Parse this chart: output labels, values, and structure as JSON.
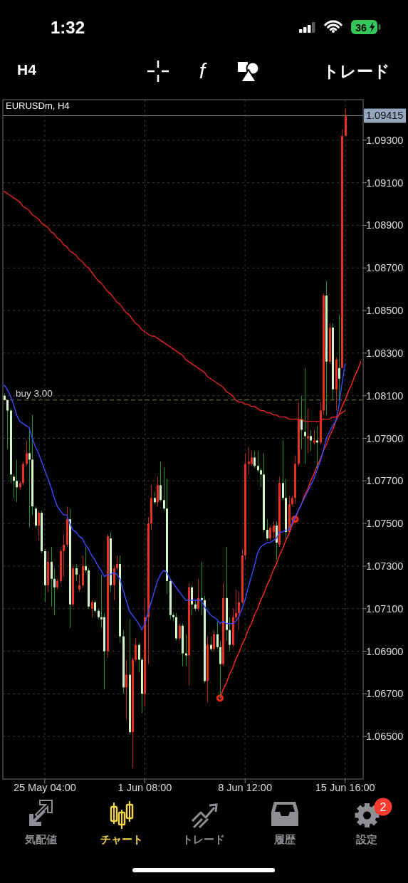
{
  "chart_data": {
    "type": "candlestick",
    "title": "EURUSDm, H4",
    "categories": [
      null,
      null,
      null,
      null,
      null,
      null,
      null,
      null,
      null,
      null,
      null,
      null,
      null,
      "25 May 04:00",
      null,
      null,
      null,
      null,
      null,
      null,
      null,
      null,
      null,
      null,
      null,
      null,
      null,
      null,
      null,
      null,
      null,
      null,
      null,
      null,
      null,
      null,
      null,
      null,
      null,
      null,
      null,
      null,
      null,
      null,
      null,
      "1 Jun 08:00",
      null,
      null,
      null,
      null,
      null,
      null,
      null,
      null,
      null,
      null,
      null,
      null,
      null,
      null,
      null,
      null,
      null,
      null,
      null,
      null,
      null,
      null,
      null,
      null,
      null,
      null,
      null,
      null,
      null,
      null,
      null,
      "8 Jun 12:00",
      null,
      null,
      null,
      null,
      null,
      null,
      null,
      null,
      null,
      null,
      null,
      null,
      null,
      null,
      null,
      null,
      null,
      null,
      null,
      null,
      null,
      null,
      null,
      null,
      null,
      null,
      null,
      null,
      null,
      null,
      null,
      "15 Jun 16:00",
      null,
      null,
      null,
      null,
      null
    ],
    "ohlc": [
      [
        1.081,
        1.0811,
        1.0808,
        1.0808
      ],
      [
        1.0808,
        1.0808,
        1.0785,
        1.0803
      ],
      [
        1.0803,
        1.0804,
        1.0769,
        1.0773
      ],
      [
        1.0772,
        1.0773,
        1.0762,
        1.077
      ],
      [
        1.077,
        1.078,
        1.076,
        1.0767
      ],
      [
        1.0767,
        1.077,
        1.0766,
        1.0769
      ],
      [
        1.0769,
        1.0779,
        1.0768,
        1.0778
      ],
      [
        1.0778,
        1.0789,
        1.0777,
        1.0783
      ],
      [
        1.0783,
        1.0794,
        1.0748,
        1.078
      ],
      [
        1.078,
        1.0801,
        1.0754,
        1.0758
      ],
      [
        1.0757,
        1.0758,
        1.0748,
        1.0749
      ],
      [
        1.0749,
        1.0756,
        1.0742,
        1.0755
      ],
      [
        1.0755,
        1.0756,
        1.0736,
        1.0737
      ],
      [
        1.0737,
        1.0738,
        1.0713,
        1.0721
      ],
      [
        1.0721,
        1.0737,
        1.0718,
        1.0732
      ],
      [
        1.0732,
        1.0739,
        1.0711,
        1.0724
      ],
      [
        1.0724,
        1.0729,
        1.0707,
        1.072
      ],
      [
        1.072,
        1.0724,
        1.0719,
        1.0723
      ],
      [
        1.0723,
        1.0738,
        1.0722,
        1.0737
      ],
      [
        1.0737,
        1.0745,
        1.0725,
        1.074
      ],
      [
        1.074,
        1.0758,
        1.0739,
        1.0752
      ],
      [
        1.0752,
        1.0757,
        1.0701,
        1.0712
      ],
      [
        1.0712,
        1.073,
        1.0711,
        1.0729
      ],
      [
        1.0729,
        1.0731,
        1.0723,
        1.0726
      ],
      [
        1.0719,
        1.0726,
        1.0718,
        1.0721
      ],
      [
        1.0721,
        1.0735,
        1.072,
        1.073
      ],
      [
        1.073,
        1.0739,
        1.0727,
        1.0728
      ],
      [
        1.0728,
        1.0729,
        1.071,
        1.0711
      ],
      [
        1.071,
        1.0714,
        1.0706,
        1.0713
      ],
      [
        1.0713,
        1.0714,
        1.0708,
        1.0709
      ],
      [
        1.0709,
        1.071,
        1.0705,
        1.0706
      ],
      [
        1.0706,
        1.0726,
        1.0701,
        1.0705
      ],
      [
        1.0706,
        1.0708,
        1.0672,
        1.069
      ],
      [
        1.069,
        1.0745,
        1.0687,
        1.0744
      ],
      [
        1.0743,
        1.0746,
        1.0718,
        1.0721
      ],
      [
        1.0721,
        1.073,
        1.0714,
        1.0729
      ],
      [
        1.0729,
        1.0735,
        1.0728,
        1.0731
      ],
      [
        1.0731,
        1.0735,
        1.0694,
        1.0697
      ],
      [
        1.0697,
        1.07,
        1.067,
        1.0673
      ],
      [
        1.0673,
        1.0686,
        1.0658,
        1.0679
      ],
      [
        1.0679,
        1.0705,
        1.0651,
        1.0652
      ],
      [
        1.0652,
        1.0687,
        1.0635,
        1.0686
      ],
      [
        1.0686,
        1.0696,
        1.0685,
        1.0693
      ],
      [
        1.0693,
        1.0694,
        1.068,
        1.0686
      ],
      [
        1.0686,
        1.0687,
        1.0661,
        1.067
      ],
      [
        1.067,
        1.0715,
        1.0664,
        1.0706
      ],
      [
        1.0706,
        1.0753,
        1.0684,
        1.075
      ],
      [
        1.075,
        1.0768,
        1.0747,
        1.0762
      ],
      [
        1.0762,
        1.0765,
        1.0759,
        1.076
      ],
      [
        1.076,
        1.0772,
        1.0758,
        1.0768
      ],
      [
        1.0768,
        1.0779,
        1.076,
        1.0761
      ],
      [
        1.0761,
        1.0776,
        1.0756,
        1.0757
      ],
      [
        1.0757,
        1.0771,
        1.0717,
        1.0723
      ],
      [
        1.0723,
        1.0724,
        1.0705,
        1.0707
      ],
      [
        1.0707,
        1.0708,
        1.0704,
        1.0706
      ],
      [
        1.0706,
        1.0708,
        1.0695,
        1.0696
      ],
      [
        1.0696,
        1.0703,
        1.0695,
        1.0702
      ],
      [
        1.0702,
        1.0703,
        1.0683,
        1.0689
      ],
      [
        1.0689,
        1.0698,
        1.0683,
        1.0688
      ],
      [
        1.0688,
        1.0722,
        1.0674,
        1.072
      ],
      [
        1.072,
        1.0721,
        1.0707,
        1.0712
      ],
      [
        1.0712,
        1.0714,
        1.0709,
        1.071
      ],
      [
        1.071,
        1.0724,
        1.0709,
        1.0715
      ],
      [
        1.0715,
        1.0732,
        1.0707,
        1.0714
      ],
      [
        1.0714,
        1.0716,
        1.0675,
        1.0676
      ],
      [
        1.0676,
        1.0697,
        1.0666,
        1.0693
      ],
      [
        1.0693,
        1.0697,
        1.069,
        1.0691
      ],
      [
        1.0691,
        1.07,
        1.069,
        1.0698
      ],
      [
        1.0698,
        1.0704,
        1.0691,
        1.0692
      ],
      [
        1.0692,
        1.0695,
        1.0668,
        1.0684
      ],
      [
        1.0684,
        1.0722,
        1.0683,
        1.0715
      ],
      [
        1.0715,
        1.0739,
        1.0695,
        1.07
      ],
      [
        1.07,
        1.0706,
        1.069,
        1.0693
      ],
      [
        1.0693,
        1.071,
        1.0692,
        1.0706
      ],
      [
        1.0706,
        1.0719,
        1.0705,
        1.0708
      ],
      [
        1.0708,
        1.0718,
        1.07,
        1.0713
      ],
      [
        1.0713,
        1.0738,
        1.0712,
        1.0735
      ],
      [
        1.0735,
        1.0783,
        1.0733,
        1.0778
      ],
      [
        1.0778,
        1.0786,
        1.0773,
        1.0779
      ],
      [
        1.0778,
        1.0784,
        1.0777,
        1.0781
      ],
      [
        1.0781,
        1.0784,
        1.0776,
        1.0777
      ],
      [
        1.0777,
        1.0784,
        1.0774,
        1.0775
      ],
      [
        1.0775,
        1.0776,
        1.0767,
        1.0773
      ],
      [
        1.0773,
        1.0783,
        1.0746,
        1.0747
      ],
      [
        1.0747,
        1.0752,
        1.0742,
        1.0743
      ],
      [
        1.0743,
        1.0749,
        1.0742,
        1.0748
      ],
      [
        1.0746,
        1.0751,
        1.0743,
        1.0749
      ],
      [
        1.0749,
        1.0751,
        1.0733,
        1.0741
      ],
      [
        1.074,
        1.0772,
        1.0739,
        1.0769
      ],
      [
        1.0769,
        1.0789,
        1.0761,
        1.0762
      ],
      [
        1.0762,
        1.0771,
        1.0743,
        1.0746
      ],
      [
        1.0746,
        1.0763,
        1.0745,
        1.0759
      ],
      [
        1.0759,
        1.0763,
        1.0758,
        1.0762
      ],
      [
        1.0762,
        1.0782,
        1.0759,
        1.0778
      ],
      [
        1.0778,
        1.0807,
        1.0777,
        1.0799
      ],
      [
        1.0799,
        1.081,
        1.0785,
        1.0794
      ],
      [
        1.0793,
        1.0823,
        1.0778,
        1.0791
      ],
      [
        1.079,
        1.0804,
        1.0783,
        1.0791
      ],
      [
        1.0791,
        1.0794,
        1.0784,
        1.0789
      ],
      [
        1.0788,
        1.0794,
        1.0787,
        1.0789
      ],
      [
        1.0789,
        1.0796,
        1.0775,
        1.0788
      ],
      [
        1.0788,
        1.0807,
        1.0787,
        1.0803
      ],
      [
        1.0803,
        1.0858,
        1.0801,
        1.0857
      ],
      [
        1.0857,
        1.0864,
        1.0801,
        1.0826
      ],
      [
        1.0826,
        1.0844,
        1.0825,
        1.0842
      ],
      [
        1.0842,
        1.0844,
        1.0808,
        1.0813
      ],
      [
        1.0813,
        1.0828,
        1.0803,
        1.0827
      ],
      [
        1.0823,
        1.0848,
        1.0808,
        1.0818
      ],
      [
        1.0823,
        1.0935,
        1.0823,
        1.0932
      ],
      [
        1.0932,
        1.0945,
        1.0932,
        1.09415
      ],
      null,
      null,
      null,
      null,
      null
    ],
    "colors": [
      "#d3f4c6",
      "#d3f4c6",
      "#d3f4c6",
      "#d3f4c6",
      "#d3f4c6",
      "#e8311c",
      "#e8311c",
      "#e8311c",
      "#d3f4c6",
      "#d3f4c6",
      "#d3f4c6",
      "#e8311c",
      "#d3f4c6",
      "#d3f4c6",
      "#e8311c",
      "#d3f4c6",
      "#d3f4c6",
      "#e8311c",
      "#e8311c",
      "#e8311c",
      "#e8311c",
      "#d3f4c6",
      "#e8311c",
      "#d3f4c6",
      "#e8311c",
      "#e8311c",
      "#d3f4c6",
      "#d3f4c6",
      "#e8311c",
      "#d3f4c6",
      "#d3f4c6",
      "#d3f4c6",
      "#d3f4c6",
      "#e8311c",
      "#d3f4c6",
      "#e8311c",
      "#e8311c",
      "#d3f4c6",
      "#d3f4c6",
      "#e8311c",
      "#d3f4c6",
      "#e8311c",
      "#e8311c",
      "#d3f4c6",
      "#d3f4c6",
      "#e8311c",
      "#e8311c",
      "#e8311c",
      "#d3f4c6",
      "#e8311c",
      "#d3f4c6",
      "#d3f4c6",
      "#d3f4c6",
      "#d3f4c6",
      "#d3f4c6",
      "#d3f4c6",
      "#e8311c",
      "#d3f4c6",
      "#d3f4c6",
      "#e8311c",
      "#d3f4c6",
      "#d3f4c6",
      "#e8311c",
      "#d3f4c6",
      "#d3f4c6",
      "#e8311c",
      "#d3f4c6",
      "#e8311c",
      "#d3f4c6",
      "#d3f4c6",
      "#e8311c",
      "#d3f4c6",
      "#d3f4c6",
      "#e8311c",
      "#e8311c",
      "#e8311c",
      "#e8311c",
      "#e8311c",
      "#e8311c",
      "#e8311c",
      "#d3f4c6",
      "#d3f4c6",
      "#d3f4c6",
      "#d3f4c6",
      "#d3f4c6",
      "#e8311c",
      "#e8311c",
      "#d3f4c6",
      "#e8311c",
      "#d3f4c6",
      "#d3f4c6",
      "#e8311c",
      "#e8311c",
      "#e8311c",
      "#e8311c",
      "#d3f4c6",
      "#d3f4c6",
      "#e8311c",
      "#d3f4c6",
      "#e8311c",
      "#d3f4c6",
      "#e8311c",
      "#e8311c",
      "#d3f4c6",
      "#e8311c",
      "#d3f4c6",
      "#e8311c",
      "#d3f4c6",
      "#e8311c",
      "#e8311c",
      null,
      null,
      null,
      null,
      null
    ],
    "series": [
      {
        "type": "line",
        "color": "#3b4bff",
        "values": [
          1.0815,
          1.0813,
          1.081,
          1.0806,
          1.0801,
          1.0798,
          1.0797,
          1.0796,
          1.0795,
          1.079,
          1.0786,
          1.0783,
          1.0779,
          1.0775,
          1.0771,
          1.0767,
          1.0762,
          1.0758,
          1.0756,
          1.0754,
          1.0754,
          1.075,
          1.0747,
          1.0746,
          1.0744,
          1.0743,
          1.074,
          1.0738,
          1.0735,
          1.0733,
          1.073,
          1.0728,
          1.0725,
          1.0726,
          1.0726,
          1.0727,
          1.0726,
          1.0724,
          1.0719,
          1.0714,
          1.0709,
          1.0707,
          1.0705,
          1.0703,
          1.07,
          1.0703,
          1.0708,
          1.0713,
          1.0718,
          1.0723,
          1.0726,
          1.0728,
          1.0727,
          1.0724,
          1.0722,
          1.072,
          1.0718,
          1.0716,
          1.0714,
          1.0714,
          1.0714,
          1.0714,
          1.0714,
          1.0714,
          1.0711,
          1.0709,
          1.0707,
          1.0706,
          1.0705,
          1.0703,
          1.0704,
          1.0703,
          1.0703,
          1.0703,
          1.0704,
          1.0706,
          1.071,
          1.0714,
          1.072,
          1.0725,
          1.073,
          1.0736,
          1.0739,
          1.074,
          1.0741,
          1.0741,
          1.0742,
          1.0743,
          1.0746,
          1.0746,
          1.0747,
          1.0747,
          1.075,
          1.0753,
          1.0756,
          1.0759,
          1.0762,
          1.0765,
          1.0768,
          1.0771,
          1.0775,
          1.0779,
          1.0784,
          1.079,
          1.0793,
          1.0796,
          1.0798,
          1.0805,
          1.0816,
          1.0825,
          null,
          null,
          null,
          null,
          null
        ]
      },
      {
        "type": "line",
        "color": "#e52320",
        "values": [
          1.0906,
          1.0905,
          1.0904,
          1.0903,
          1.0902,
          1.0901,
          1.0899,
          1.0898,
          1.0897,
          1.0895,
          1.0894,
          1.0893,
          1.0891,
          1.089,
          1.0889,
          1.0887,
          1.0886,
          1.0884,
          1.0883,
          1.0881,
          1.088,
          1.0878,
          1.0877,
          1.0876,
          1.0874,
          1.0873,
          1.0871,
          1.087,
          1.0868,
          1.0866,
          1.0864,
          1.0863,
          1.0861,
          1.0859,
          1.0858,
          1.0856,
          1.0854,
          1.0853,
          1.0851,
          1.0849,
          1.0848,
          1.0846,
          1.0844,
          1.0843,
          1.0841,
          1.084,
          1.0839,
          1.0838,
          1.0838,
          1.0837,
          1.0836,
          1.0835,
          1.0834,
          1.0833,
          1.0832,
          1.0831,
          1.083,
          1.0829,
          1.0827,
          1.0826,
          1.0825,
          1.0824,
          1.0823,
          1.0822,
          1.0821,
          1.0819,
          1.0818,
          1.0817,
          1.0816,
          1.0815,
          1.0814,
          1.0812,
          1.0811,
          1.081,
          1.0808,
          1.0807,
          1.0807,
          1.0806,
          1.0806,
          1.0805,
          1.0805,
          1.0804,
          1.0803,
          1.0803,
          1.0802,
          1.0802,
          1.0801,
          1.0801,
          1.08,
          1.08,
          1.08,
          1.0799,
          1.0799,
          1.0799,
          1.0799,
          1.0799,
          1.0798,
          1.0798,
          1.0798,
          1.0798,
          1.0798,
          1.0798,
          1.0799,
          1.0799,
          1.0799,
          1.08,
          1.08,
          1.0801,
          1.0802,
          1.0803,
          null,
          null,
          null,
          null,
          null
        ]
      },
      {
        "type": "line",
        "color": "#ff2a1a",
        "values": [
          null,
          null,
          null,
          null,
          null,
          null,
          null,
          null,
          null,
          null,
          null,
          null,
          null,
          null,
          null,
          null,
          null,
          null,
          null,
          null,
          null,
          null,
          null,
          null,
          null,
          null,
          null,
          null,
          null,
          null,
          null,
          null,
          null,
          null,
          null,
          null,
          null,
          null,
          null,
          null,
          null,
          null,
          null,
          null,
          null,
          null,
          null,
          null,
          null,
          null,
          null,
          null,
          null,
          null,
          null,
          null,
          null,
          null,
          null,
          null,
          null,
          null,
          null,
          null,
          null,
          null,
          null,
          null,
          null,
          1.0668,
          1.0672,
          1.0675,
          1.0679,
          1.0682,
          1.0686,
          1.0689,
          1.0693,
          1.0696,
          1.07,
          1.0703,
          1.0707,
          1.071,
          1.0714,
          1.0717,
          1.0721,
          1.0724,
          1.0728,
          1.0731,
          1.0735,
          1.0738,
          1.0742,
          1.0745,
          1.0749,
          1.0752,
          1.0756,
          1.0759,
          1.0763,
          1.0766,
          1.077,
          1.0773,
          1.0777,
          1.078,
          1.0784,
          1.0787,
          1.0791,
          1.0794,
          1.0798,
          1.0801,
          1.0805,
          1.0808,
          1.0812,
          1.0815,
          1.0819,
          1.0822,
          1.0826
        ]
      },
      {
        "type": "scatter",
        "color": "#ff2a1a",
        "marker": "circle",
        "values": [
          null,
          null,
          null,
          null,
          null,
          null,
          null,
          null,
          null,
          null,
          null,
          null,
          null,
          null,
          null,
          null,
          null,
          null,
          null,
          null,
          null,
          null,
          null,
          null,
          null,
          null,
          null,
          null,
          null,
          null,
          null,
          null,
          null,
          null,
          null,
          null,
          null,
          null,
          null,
          null,
          null,
          null,
          null,
          null,
          null,
          null,
          null,
          null,
          null,
          null,
          null,
          null,
          null,
          null,
          null,
          null,
          null,
          null,
          null,
          null,
          null,
          null,
          null,
          null,
          null,
          null,
          null,
          null,
          null,
          1.0668,
          null,
          null,
          null,
          null,
          null,
          null,
          null,
          null,
          null,
          null,
          null,
          null,
          null,
          null,
          null,
          null,
          null,
          null,
          null,
          null,
          null,
          null,
          null,
          1.0752,
          null,
          null,
          null,
          null,
          null,
          null,
          null,
          null,
          null,
          null,
          null,
          null,
          null,
          null,
          null,
          null,
          null,
          null,
          null,
          null,
          null
        ]
      }
    ],
    "ylim": [
      1.063,
      1.0949
    ],
    "yticks": [
      {
        "value": 1.065,
        "label": "1.06500"
      },
      {
        "value": 1.067,
        "label": "1.06700"
      },
      {
        "value": 1.069,
        "label": "1.06900"
      },
      {
        "value": 1.071,
        "label": "1.07100"
      },
      {
        "value": 1.073,
        "label": "1.07300"
      },
      {
        "value": 1.075,
        "label": "1.07500"
      },
      {
        "value": 1.077,
        "label": "1.07700"
      },
      {
        "value": 1.079,
        "label": "1.07900"
      },
      {
        "value": 1.081,
        "label": "1.08100"
      },
      {
        "value": 1.083,
        "label": "1.08300"
      },
      {
        "value": 1.085,
        "label": "1.08500"
      },
      {
        "value": 1.087,
        "label": "1.08700"
      },
      {
        "value": 1.089,
        "label": "1.08900"
      },
      {
        "value": 1.091,
        "label": "1.09100"
      },
      {
        "value": 1.093,
        "label": "1.09300"
      }
    ],
    "grid": true,
    "ref_lines": [
      {
        "axis": "y",
        "value": 1.0808,
        "label": "buy 3.00",
        "color": "#7d7d33",
        "line_style": "dashed"
      },
      {
        "axis": "y",
        "value": 1.09415,
        "label": "1.09415",
        "color": "#8a8a8a",
        "line_style": "solid"
      }
    ],
    "annotations": [
      "1:32",
      "36",
      "H4",
      "f",
      "トレード",
      "気配値",
      "チャート",
      "トレード",
      "履歴",
      "設定",
      "2"
    ]
  }
}
